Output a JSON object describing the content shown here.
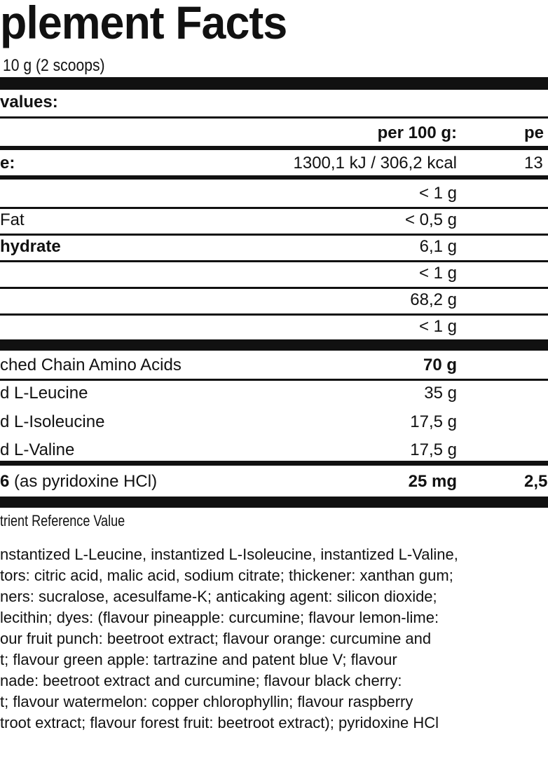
{
  "title": "plement Facts",
  "serving": "10 g (2 scoops)",
  "section_heading": "values:",
  "columns": {
    "per100": "per 100 g:",
    "per_serving": "pe"
  },
  "energy": {
    "label": "e:",
    "per100": "1300,1 kJ / 306,2 kcal",
    "per_serving": "13"
  },
  "nutrients": [
    {
      "label": "",
      "per100": "< 1 g"
    },
    {
      "label": "Fat",
      "per100": "< 0,5 g"
    },
    {
      "label": "hydrate",
      "per100": "6,1 g"
    },
    {
      "label": "",
      "per100": "< 1 g"
    },
    {
      "label": "",
      "per100": "68,2 g"
    },
    {
      "label": "",
      "per100": "< 1 g"
    }
  ],
  "bcaa": {
    "label": "ched Chain Amino Acids",
    "per100": "70 g"
  },
  "amino": [
    {
      "label": "d L-Leucine",
      "per100": "35 g"
    },
    {
      "label": "d L-Isoleucine",
      "per100": "17,5 g"
    },
    {
      "label": "d L-Valine",
      "per100": "17,5 g"
    }
  ],
  "b6": {
    "label_bold": "6",
    "label": " (as pyridoxine HCl)",
    "per100": "25 mg",
    "per_serving": "2,5"
  },
  "nrv_note": "trient Reference Value",
  "ingredients": [
    "nstantized L-Leucine, instantized L-Isoleucine, instantized L-Valine,",
    "tors: citric acid, malic acid, sodium citrate; thickener: xanthan gum;",
    "ners: sucralose, acesulfame-K; anticaking agent: silicon dioxide;",
    " lecithin; dyes: (flavour pineapple: curcumine; flavour lemon-lime:",
    "our fruit punch: beetroot extract; flavour orange: curcumine and",
    "t; flavour green apple: tartrazine and patent blue V; flavour",
    "nade: beetroot extract and curcumine; flavour black cherry:",
    "t; flavour watermelon: copper chlorophyllin; flavour raspberry",
    "troot extract; flavour forest fruit: beetroot extract); pyridoxine HCl"
  ]
}
